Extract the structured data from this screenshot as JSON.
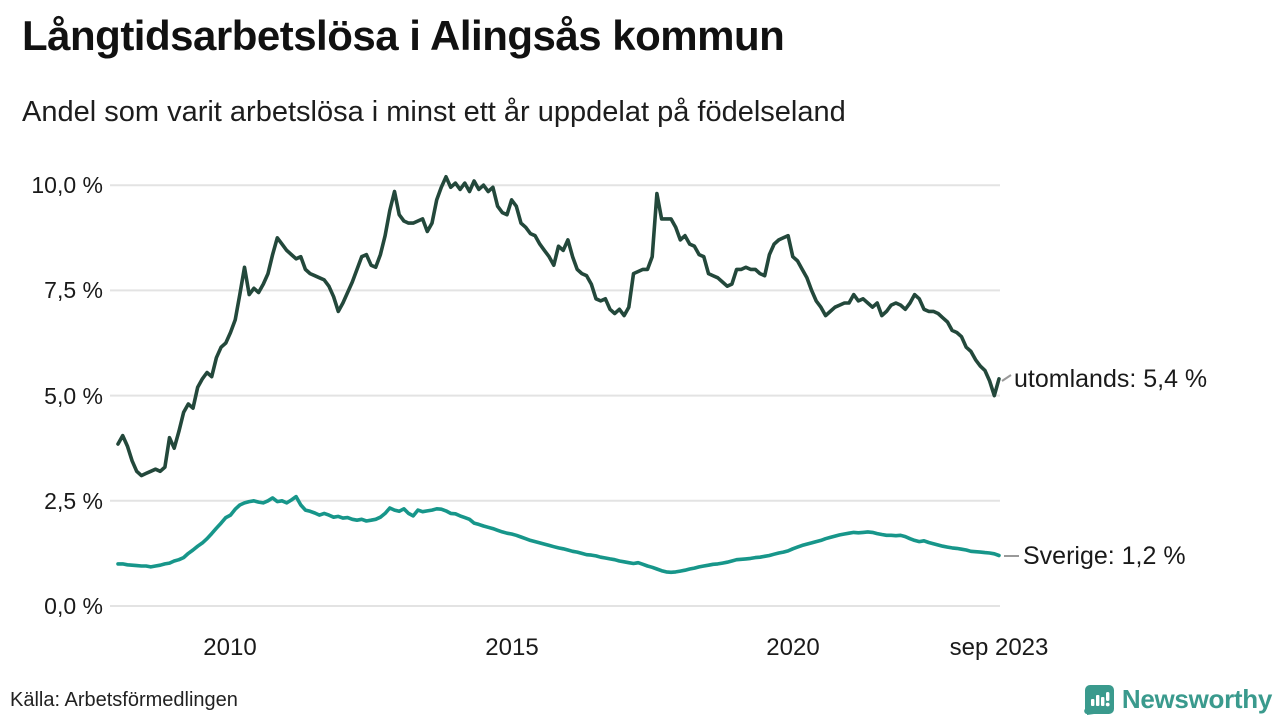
{
  "header": {
    "title": "Långtidsarbetslösa i Alingsås kommun",
    "subtitle": "Andel som varit arbetslösa i minst ett år uppdelat på födelseland"
  },
  "footer": {
    "source": "Källa: Arbetsförmedlingen",
    "brand": "Newsworthy"
  },
  "colors": {
    "utomlands_line": "#23483b",
    "sverige_line": "#17968a",
    "grid": "#e3e3e3",
    "connector": "#999999",
    "brand_teal": "#3a9a8d"
  },
  "chart_data": {
    "type": "line",
    "title": "Långtidsarbetslösa i Alingsås kommun",
    "subtitle": "Andel som varit arbetslösa i minst ett år uppdelat på födelseland",
    "unit": "%",
    "x_start": "2008-01",
    "x_end": "2023-09",
    "x_frequency": "monthly",
    "grid": true,
    "ylim": [
      0,
      10.6
    ],
    "y_ticks": [
      "10,0 %",
      "7,5 %",
      "5,0 %",
      "2,5 %",
      "0,0 %"
    ],
    "y_tick_values": [
      10.0,
      7.5,
      5.0,
      2.5,
      0.0
    ],
    "x_tick_labels": [
      "2010",
      "2015",
      "2020",
      "sep 2023"
    ],
    "x_tick_month_indices": [
      24,
      84,
      144,
      188
    ],
    "series": [
      {
        "name": "utomlands",
        "label": "utomlands: 5,4 %",
        "last_value": 5.4,
        "color": "#23483b",
        "values": [
          3.85,
          4.05,
          3.8,
          3.45,
          3.2,
          3.1,
          3.15,
          3.2,
          3.25,
          3.2,
          3.3,
          4.0,
          3.75,
          4.15,
          4.6,
          4.8,
          4.7,
          5.2,
          5.4,
          5.55,
          5.45,
          5.9,
          6.15,
          6.25,
          6.5,
          6.8,
          7.4,
          8.05,
          7.4,
          7.55,
          7.45,
          7.65,
          7.9,
          8.35,
          8.75,
          8.6,
          8.45,
          8.35,
          8.25,
          8.3,
          8.0,
          7.9,
          7.85,
          7.8,
          7.75,
          7.6,
          7.35,
          7.0,
          7.2,
          7.45,
          7.7,
          8.0,
          8.3,
          8.35,
          8.1,
          8.05,
          8.35,
          8.8,
          9.4,
          9.85,
          9.3,
          9.15,
          9.1,
          9.1,
          9.15,
          9.2,
          8.9,
          9.1,
          9.65,
          9.95,
          10.2,
          9.95,
          10.05,
          9.9,
          10.05,
          9.85,
          10.1,
          9.9,
          10.0,
          9.85,
          9.95,
          9.5,
          9.35,
          9.3,
          9.65,
          9.5,
          9.1,
          9.0,
          8.85,
          8.8,
          8.6,
          8.45,
          8.3,
          8.1,
          8.55,
          8.45,
          8.7,
          8.3,
          8.0,
          7.9,
          7.85,
          7.65,
          7.3,
          7.25,
          7.3,
          7.05,
          6.95,
          7.05,
          6.9,
          7.1,
          7.9,
          7.95,
          8.0,
          8.0,
          8.3,
          9.8,
          9.2,
          9.2,
          9.2,
          9.0,
          8.7,
          8.8,
          8.6,
          8.55,
          8.35,
          8.3,
          7.9,
          7.85,
          7.8,
          7.7,
          7.6,
          7.65,
          8.0,
          8.0,
          8.05,
          8.0,
          8.0,
          7.9,
          7.85,
          8.35,
          8.6,
          8.7,
          8.75,
          8.8,
          8.3,
          8.2,
          8.0,
          7.8,
          7.5,
          7.25,
          7.1,
          6.9,
          7.0,
          7.1,
          7.15,
          7.2,
          7.2,
          7.4,
          7.25,
          7.3,
          7.2,
          7.1,
          7.2,
          6.9,
          7.0,
          7.15,
          7.2,
          7.15,
          7.05,
          7.2,
          7.4,
          7.3,
          7.05,
          7.0,
          7.0,
          6.95,
          6.85,
          6.75,
          6.55,
          6.5,
          6.4,
          6.15,
          6.05,
          5.85,
          5.7,
          5.6,
          5.35,
          5.0,
          5.4
        ]
      },
      {
        "name": "Sverige",
        "label": "Sverige: 1,2 %",
        "last_value": 1.2,
        "color": "#17968a",
        "values": [
          1.0,
          1.0,
          0.98,
          0.97,
          0.96,
          0.95,
          0.95,
          0.93,
          0.95,
          0.97,
          1.0,
          1.02,
          1.07,
          1.1,
          1.15,
          1.25,
          1.33,
          1.42,
          1.5,
          1.6,
          1.72,
          1.85,
          1.97,
          2.1,
          2.16,
          2.3,
          2.4,
          2.45,
          2.48,
          2.5,
          2.47,
          2.45,
          2.5,
          2.57,
          2.48,
          2.5,
          2.45,
          2.52,
          2.6,
          2.4,
          2.28,
          2.25,
          2.21,
          2.16,
          2.2,
          2.16,
          2.11,
          2.13,
          2.09,
          2.1,
          2.06,
          2.04,
          2.06,
          2.02,
          2.04,
          2.06,
          2.11,
          2.2,
          2.33,
          2.28,
          2.25,
          2.31,
          2.2,
          2.14,
          2.28,
          2.24,
          2.26,
          2.28,
          2.31,
          2.3,
          2.26,
          2.2,
          2.19,
          2.14,
          2.1,
          2.06,
          1.97,
          1.94,
          1.9,
          1.87,
          1.84,
          1.8,
          1.76,
          1.73,
          1.71,
          1.68,
          1.64,
          1.6,
          1.56,
          1.53,
          1.5,
          1.47,
          1.44,
          1.41,
          1.38,
          1.36,
          1.33,
          1.3,
          1.28,
          1.25,
          1.22,
          1.21,
          1.19,
          1.16,
          1.14,
          1.12,
          1.1,
          1.07,
          1.05,
          1.03,
          1.01,
          1.03,
          0.99,
          0.95,
          0.92,
          0.88,
          0.84,
          0.81,
          0.8,
          0.81,
          0.83,
          0.85,
          0.88,
          0.9,
          0.93,
          0.95,
          0.97,
          0.99,
          1.0,
          1.02,
          1.04,
          1.07,
          1.1,
          1.11,
          1.12,
          1.13,
          1.15,
          1.16,
          1.18,
          1.2,
          1.23,
          1.26,
          1.28,
          1.31,
          1.36,
          1.4,
          1.44,
          1.47,
          1.5,
          1.53,
          1.56,
          1.6,
          1.63,
          1.66,
          1.69,
          1.71,
          1.73,
          1.75,
          1.74,
          1.75,
          1.76,
          1.75,
          1.72,
          1.7,
          1.68,
          1.68,
          1.67,
          1.68,
          1.65,
          1.6,
          1.56,
          1.53,
          1.55,
          1.51,
          1.48,
          1.45,
          1.42,
          1.4,
          1.38,
          1.37,
          1.35,
          1.33,
          1.3,
          1.29,
          1.28,
          1.27,
          1.26,
          1.24,
          1.2
        ]
      }
    ]
  }
}
